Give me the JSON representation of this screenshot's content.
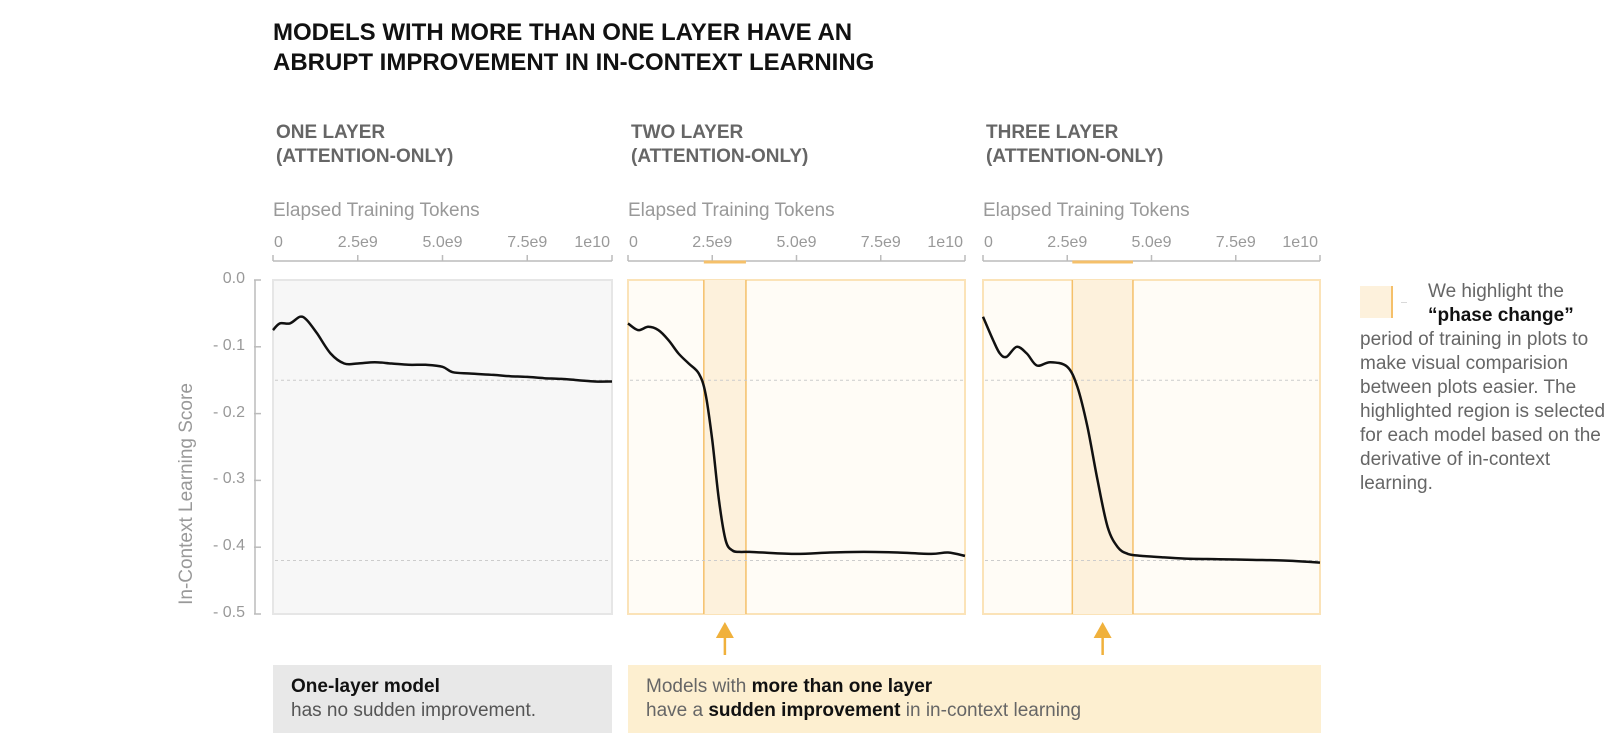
{
  "title": "MODELS WITH MORE THAN ONE LAYER HAVE AN ABRUPT IMPROVEMENT IN IN-CONTEXT LEARNING",
  "title_lines": [
    "MODELS WITH MORE THAN ONE LAYER HAVE AN",
    "ABRUPT IMPROVEMENT IN IN-CONTEXT LEARNING"
  ],
  "colors": {
    "line": "#111111",
    "highlight_fill": "#fdf1dc",
    "highlight_edge": "#f5c06a",
    "arrow": "#f0b13c",
    "panel_bg_plain": "#f7f7f7",
    "panel_bg_highlighted": "#fffcf6",
    "grid": "#cccccc"
  },
  "side_note": {
    "text_before": "We highlight the",
    "bold": "“phase change”",
    "text_after": "period of training in plots to make visual comparision between plots easier. The highlighted region is selected for each model based on the derivative of in-context learning."
  },
  "callouts": {
    "left": {
      "line1_bold": "One-layer model",
      "line2": "has no sudden improvement."
    },
    "right": {
      "line1_prefix": "Models with ",
      "line1_bold": "more than one layer",
      "line2_prefix": "have a ",
      "line2_bold": "sudden improvement",
      "line2_suffix": " in in-context learning"
    }
  },
  "chart_data": [
    {
      "type": "line",
      "title_lines": [
        "ONE LAYER",
        "(ATTENTION-ONLY)"
      ],
      "xlabel": "Elapsed Training Tokens",
      "ylabel": "In-Context Learning Score",
      "xlim": [
        0,
        10000000000
      ],
      "ylim": [
        -0.5,
        0.0
      ],
      "x_ticks": [
        "0",
        "2.5e9",
        "5.0e9",
        "7.5e9",
        "1e10"
      ],
      "y_ticks": [
        "0.0",
        "- 0.1",
        "- 0.2",
        "- 0.3",
        "- 0.4",
        "- 0.5"
      ],
      "reference_lines": [
        -0.15,
        -0.42
      ],
      "highlight": null,
      "x": [
        0,
        200000000,
        500000000,
        800000000,
        1000000000,
        1300000000,
        1700000000,
        2100000000,
        2500000000,
        3000000000,
        3500000000,
        4000000000,
        4500000000,
        5000000000,
        5300000000,
        5800000000,
        6500000000,
        7000000000,
        7500000000,
        8000000000,
        8500000000,
        9000000000,
        9500000000,
        10000000000
      ],
      "y": [
        -0.075,
        -0.065,
        -0.065,
        -0.055,
        -0.06,
        -0.08,
        -0.11,
        -0.125,
        -0.125,
        -0.123,
        -0.125,
        -0.127,
        -0.127,
        -0.13,
        -0.138,
        -0.14,
        -0.142,
        -0.144,
        -0.145,
        -0.147,
        -0.148,
        -0.15,
        -0.152,
        -0.152
      ]
    },
    {
      "type": "line",
      "title_lines": [
        "TWO LAYER",
        "(ATTENTION-ONLY)"
      ],
      "xlabel": "Elapsed Training Tokens",
      "xlim": [
        0,
        10000000000
      ],
      "ylim": [
        -0.5,
        0.0
      ],
      "x_ticks": [
        "0",
        "2.5e9",
        "5.0e9",
        "7.5e9",
        "1e10"
      ],
      "reference_lines": [
        -0.15,
        -0.42
      ],
      "highlight": [
        2250000000,
        3500000000
      ],
      "x": [
        0,
        300000000,
        600000000,
        900000000,
        1200000000,
        1500000000,
        1800000000,
        2100000000,
        2300000000,
        2500000000,
        2700000000,
        2900000000,
        3100000000,
        3300000000,
        3600000000,
        4000000000,
        5000000000,
        6000000000,
        7000000000,
        8000000000,
        9000000000,
        9500000000,
        10000000000
      ],
      "y": [
        -0.065,
        -0.075,
        -0.07,
        -0.075,
        -0.09,
        -0.11,
        -0.125,
        -0.14,
        -0.17,
        -0.24,
        -0.33,
        -0.39,
        -0.405,
        -0.407,
        -0.407,
        -0.408,
        -0.41,
        -0.408,
        -0.407,
        -0.408,
        -0.41,
        -0.408,
        -0.413
      ]
    },
    {
      "type": "line",
      "title_lines": [
        "THREE LAYER",
        "(ATTENTION-ONLY)"
      ],
      "xlabel": "Elapsed Training Tokens",
      "xlim": [
        0,
        10000000000
      ],
      "ylim": [
        -0.5,
        0.0
      ],
      "x_ticks": [
        "0",
        "2.5e9",
        "5.0e9",
        "7.5e9",
        "1e10"
      ],
      "reference_lines": [
        -0.15,
        -0.42
      ],
      "highlight": [
        2650000000,
        4450000000
      ],
      "x": [
        0,
        300000000,
        500000000,
        700000000,
        1000000000,
        1300000000,
        1600000000,
        2000000000,
        2500000000,
        2800000000,
        3100000000,
        3400000000,
        3700000000,
        4000000000,
        4300000000,
        4700000000,
        5300000000,
        6000000000,
        7000000000,
        8000000000,
        9000000000,
        10000000000
      ],
      "y": [
        -0.055,
        -0.09,
        -0.11,
        -0.115,
        -0.1,
        -0.11,
        -0.128,
        -0.123,
        -0.13,
        -0.16,
        -0.22,
        -0.3,
        -0.37,
        -0.4,
        -0.41,
        -0.413,
        -0.415,
        -0.417,
        -0.418,
        -0.419,
        -0.42,
        -0.423
      ]
    }
  ]
}
